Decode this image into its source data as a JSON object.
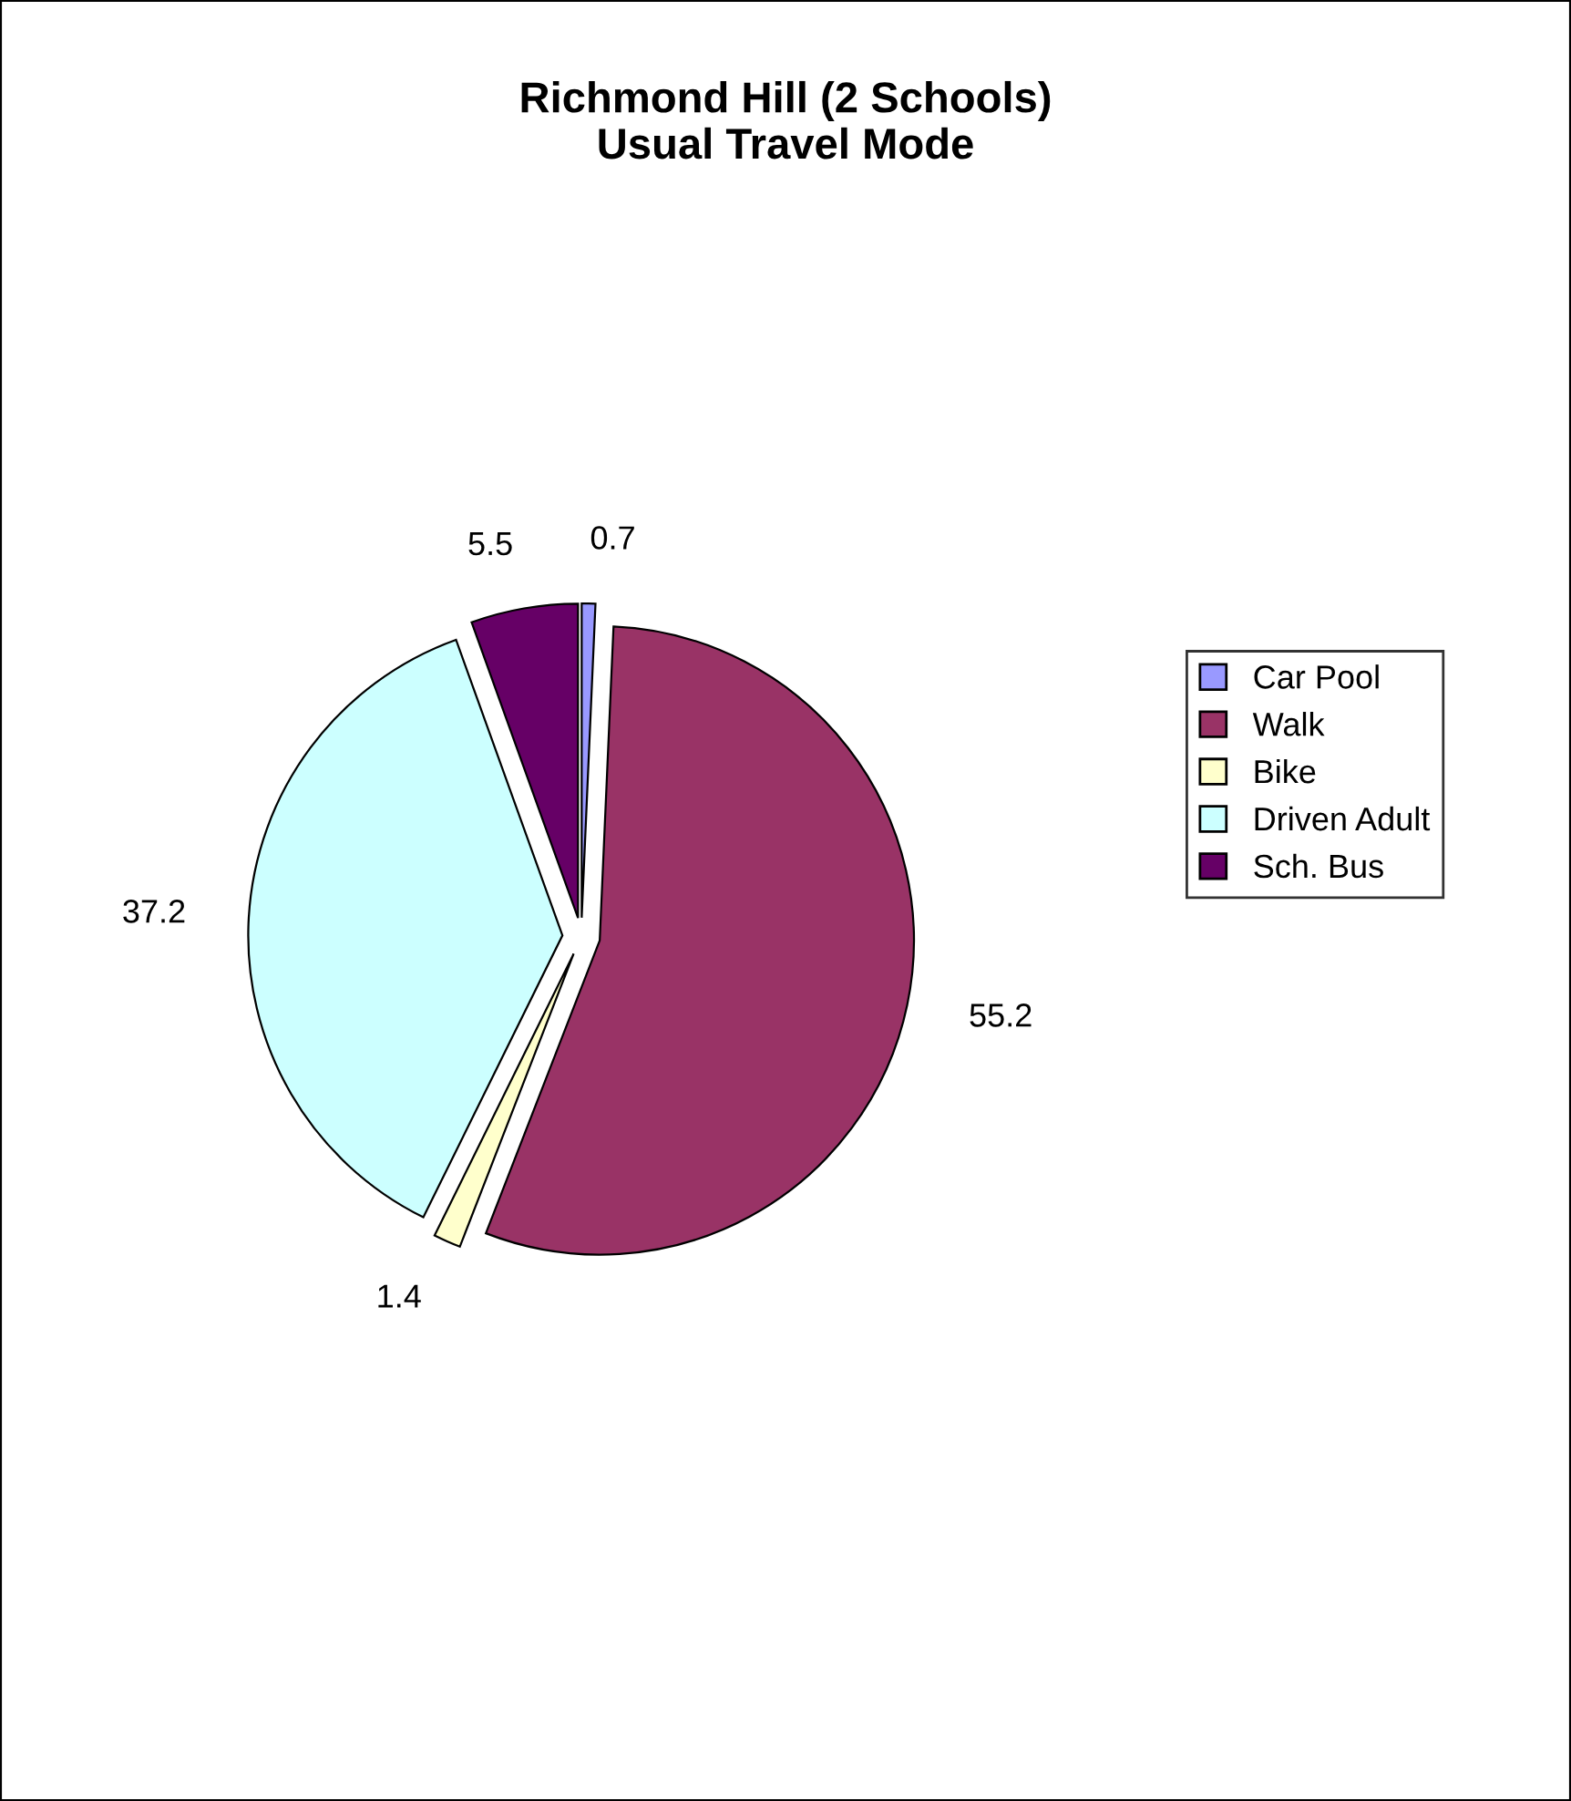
{
  "chart_data": {
    "type": "pie",
    "title": "Richmond Hill (2 Schools)\nUsual Travel Mode",
    "categories": [
      "Car Pool",
      "Walk",
      "Bike",
      "Driven Adult",
      "Sch. Bus"
    ],
    "values": [
      0.7,
      55.2,
      1.4,
      37.2,
      5.5
    ],
    "colors": [
      "#9999ff",
      "#993366",
      "#ffffcc",
      "#ccffff",
      "#660066"
    ],
    "data_labels": true,
    "legend": "right"
  }
}
